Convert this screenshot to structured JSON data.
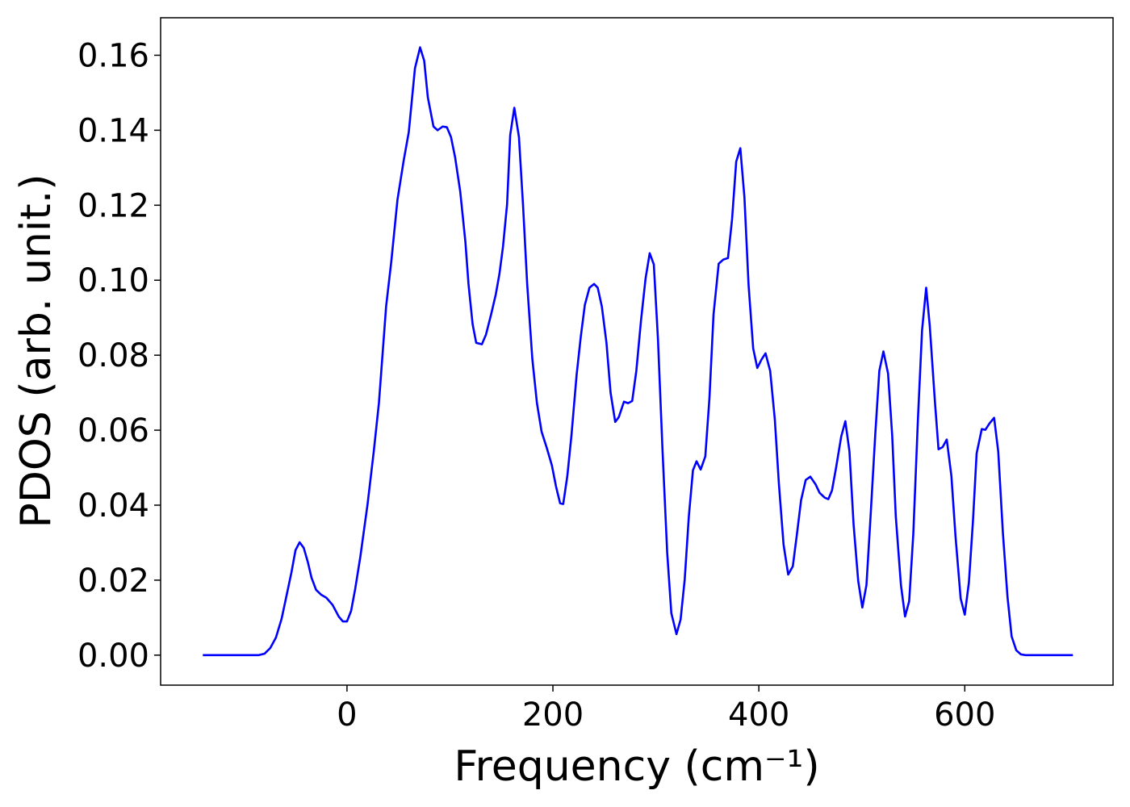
{
  "chart_data": {
    "type": "line",
    "xlabel": "Frequency (cm⁻¹)",
    "ylabel": "PDOS (arb. unit.)",
    "xlim": [
      -181,
      744
    ],
    "ylim": [
      -0.008,
      0.17
    ],
    "xticks": [
      0,
      200,
      400,
      600
    ],
    "yticks": [
      {
        "value": 0,
        "label": "0.00"
      },
      {
        "value": 0.02,
        "label": "0.02"
      },
      {
        "value": 0.04,
        "label": "0.04"
      },
      {
        "value": 0.06,
        "label": "0.06"
      },
      {
        "value": 0.08,
        "label": "0.08"
      },
      {
        "value": 0.1,
        "label": "0.10"
      },
      {
        "value": 0.12,
        "label": "0.12"
      },
      {
        "value": 0.14,
        "label": "0.14"
      },
      {
        "value": 0.16,
        "label": "0.16"
      }
    ],
    "series": [
      {
        "color": "#0000ff",
        "x": [
          -140,
          -90,
          -86,
          -80,
          -74.5,
          -69,
          -63.5,
          -59,
          -54,
          -50,
          -46,
          -42,
          -38,
          -34.5,
          -30,
          -25,
          -20,
          -14,
          -8,
          -4,
          0,
          4,
          8,
          13,
          20,
          26,
          31,
          38,
          43,
          49,
          55,
          60,
          66,
          71,
          75,
          78.5,
          84,
          88,
          93,
          97,
          101,
          105,
          110,
          115,
          118,
          122,
          125.5,
          131,
          135,
          140,
          144.5,
          148,
          151.5,
          155.5,
          158.5,
          162.5,
          167,
          171,
          175,
          180,
          184.5,
          189,
          194,
          199,
          203,
          207,
          210,
          214,
          218,
          223,
          227,
          231,
          235.5,
          240,
          243.5,
          247.5,
          252,
          256,
          260.5,
          264,
          269,
          273,
          277,
          281,
          285.5,
          290,
          294,
          298,
          302,
          306.5,
          311,
          315,
          320,
          324,
          328,
          332,
          336,
          339.5,
          343.5,
          348,
          352,
          356,
          361,
          365.5,
          370,
          374,
          378,
          382,
          386,
          390,
          394.5,
          398.5,
          402.5,
          406.5,
          411,
          415.5,
          419.5,
          424,
          428.5,
          433,
          437,
          441,
          445.5,
          450,
          455,
          459,
          464,
          467.5,
          471,
          475,
          480,
          484,
          488,
          492,
          496.5,
          500.5,
          504.5,
          508.5,
          513,
          517,
          521,
          525.5,
          529.5,
          533,
          538,
          542,
          546,
          550,
          554.5,
          558.5,
          562.5,
          566,
          571,
          574.5,
          578.5,
          582.5,
          587,
          591,
          596,
          600,
          604,
          608,
          611.5,
          616.5,
          620,
          624,
          628.5,
          632.5,
          637,
          641.5,
          645.5,
          650,
          654.5,
          659,
          705
        ],
        "values": [
          0,
          0,
          0,
          0.0004,
          0.0019,
          0.0047,
          0.0097,
          0.0155,
          0.022,
          0.028,
          0.0301,
          0.0286,
          0.0248,
          0.0207,
          0.0174,
          0.0161,
          0.0153,
          0.0134,
          0.0103,
          0.009,
          0.009,
          0.0118,
          0.0177,
          0.0263,
          0.0403,
          0.0543,
          0.0672,
          0.093,
          0.1049,
          0.1214,
          0.1318,
          0.1395,
          0.1565,
          0.1621,
          0.1585,
          0.1488,
          0.141,
          0.14,
          0.141,
          0.1408,
          0.1382,
          0.1328,
          0.1236,
          0.1102,
          0.099,
          0.0883,
          0.0833,
          0.0829,
          0.0855,
          0.0909,
          0.0962,
          0.1016,
          0.1089,
          0.1203,
          0.1387,
          0.146,
          0.1382,
          0.1199,
          0.099,
          0.079,
          0.0672,
          0.0596,
          0.0553,
          0.0506,
          0.045,
          0.0405,
          0.0403,
          0.0478,
          0.0586,
          0.0747,
          0.0848,
          0.0934,
          0.098,
          0.099,
          0.098,
          0.093,
          0.0833,
          0.07,
          0.0622,
          0.0635,
          0.0676,
          0.0672,
          0.0678,
          0.0758,
          0.0891,
          0.1005,
          0.1072,
          0.1042,
          0.0844,
          0.0543,
          0.0273,
          0.0112,
          0.0056,
          0.0095,
          0.0202,
          0.037,
          0.0493,
          0.0517,
          0.0495,
          0.053,
          0.0685,
          0.0909,
          0.1044,
          0.1055,
          0.1059,
          0.1163,
          0.1316,
          0.1352,
          0.1221,
          0.0988,
          0.0818,
          0.0766,
          0.0788,
          0.0805,
          0.0758,
          0.0629,
          0.0456,
          0.0295,
          0.0215,
          0.0237,
          0.0323,
          0.0413,
          0.0467,
          0.0476,
          0.0456,
          0.0433,
          0.042,
          0.0416,
          0.0439,
          0.05,
          0.0583,
          0.0624,
          0.0543,
          0.0349,
          0.0198,
          0.0127,
          0.0187,
          0.037,
          0.0586,
          0.0758,
          0.081,
          0.0751,
          0.0586,
          0.037,
          0.0187,
          0.0103,
          0.0144,
          0.0323,
          0.0629,
          0.0866,
          0.098,
          0.0878,
          0.0676,
          0.0549,
          0.0555,
          0.0575,
          0.0478,
          0.0317,
          0.0151,
          0.0108,
          0.0194,
          0.036,
          0.0538,
          0.0603,
          0.0601,
          0.0618,
          0.0633,
          0.0543,
          0.0327,
          0.0155,
          0.005,
          0.0013,
          0.0002,
          0,
          0
        ]
      }
    ]
  }
}
